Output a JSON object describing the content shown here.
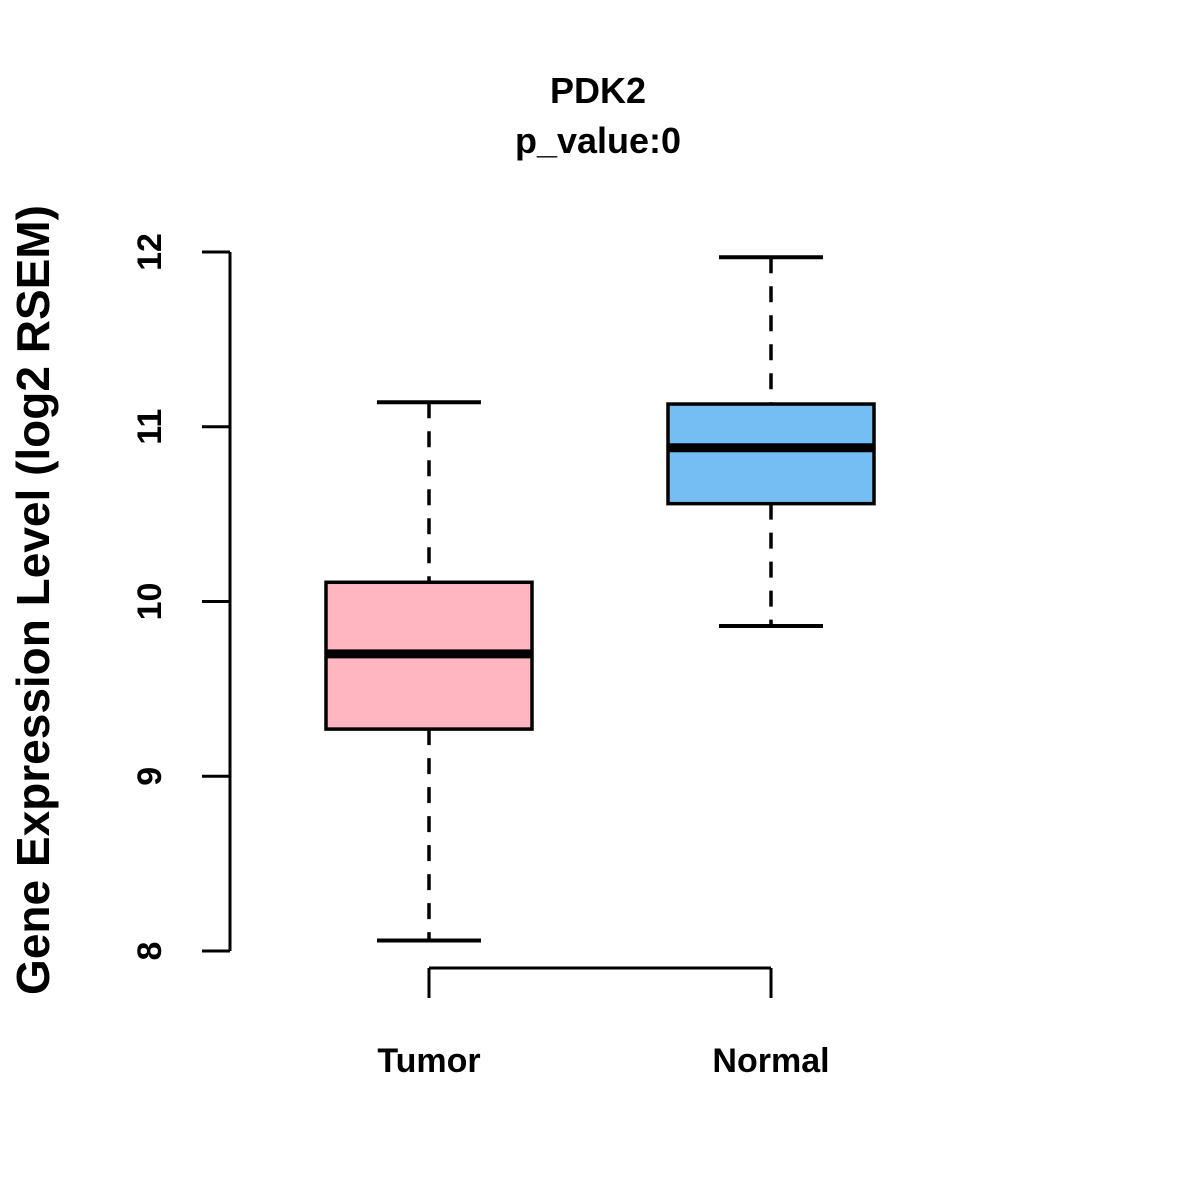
{
  "chart_data": {
    "type": "boxplot",
    "title": "PDK2",
    "subtitle": "p_value:0",
    "ylabel": "Gene Expression Level (log2 RSEM)",
    "xlabel": "",
    "ylim": [
      8,
      12
    ],
    "yticks": [
      8,
      9,
      10,
      11,
      12
    ],
    "categories": [
      "Tumor",
      "Normal"
    ],
    "series": [
      {
        "name": "Tumor",
        "lower_whisker": 8.06,
        "q1": 9.27,
        "median": 9.7,
        "q3": 10.11,
        "upper_whisker": 11.14,
        "fill_color": "#FFB6C1"
      },
      {
        "name": "Normal",
        "lower_whisker": 9.86,
        "q1": 10.56,
        "median": 10.88,
        "q3": 11.13,
        "upper_whisker": 11.97,
        "fill_color": "#74BEF4"
      }
    ],
    "stroke_color": "#000000",
    "whisker_line_style": "dashed",
    "grid": false,
    "legend_position": "none",
    "background_color": "#FFFFFF"
  }
}
